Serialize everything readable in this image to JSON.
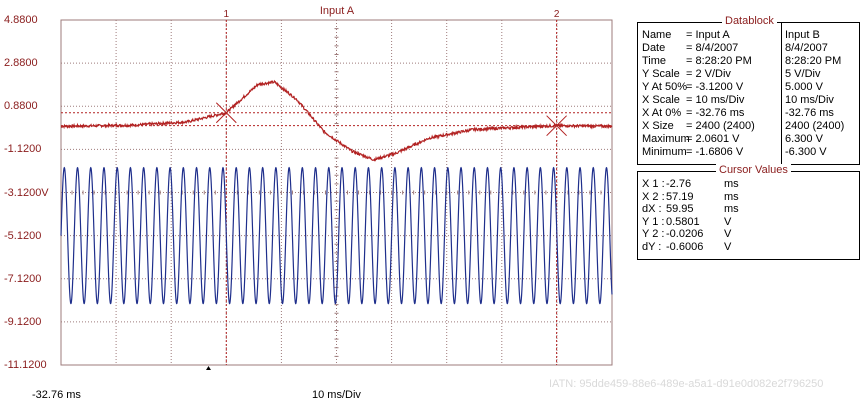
{
  "chart_data": {
    "type": "line",
    "title": "Input A",
    "x_start_label": "-32.76 ms",
    "x_scale_label": "10 ms/Div",
    "y_tick_labels": [
      "4.8800",
      "2.8800",
      "0.8800",
      "-1.1200",
      "-3.1200V",
      "-5.1200",
      "-7.1200",
      "-9.1200",
      "-11.1200"
    ],
    "ylim": [
      -11.12,
      4.88
    ],
    "xlim_ms": [
      -32.76,
      67.24
    ],
    "cursors": [
      {
        "label": "1",
        "x_ms": -2.76,
        "y_v": 0.5801
      },
      {
        "label": "2",
        "x_ms": 57.19,
        "y_v": -0.0206
      }
    ],
    "series": [
      {
        "name": "Input A",
        "color": "#b22222",
        "description_points": [
          [
            -32.76,
            -0.05
          ],
          [
            -20,
            0.0
          ],
          [
            -10,
            0.15
          ],
          [
            -2.76,
            0.58
          ],
          [
            3,
            1.9
          ],
          [
            6,
            2.0
          ],
          [
            10,
            1.2
          ],
          [
            15,
            -0.3
          ],
          [
            20,
            -1.2
          ],
          [
            24,
            -1.6
          ],
          [
            28,
            -1.3
          ],
          [
            34,
            -0.6
          ],
          [
            42,
            -0.2
          ],
          [
            50,
            -0.1
          ],
          [
            57.19,
            -0.02
          ],
          [
            67.24,
            -0.05
          ]
        ]
      },
      {
        "name": "Input B",
        "color": "#1f2f8c",
        "amplitude_div": 1.575,
        "center_v": -5.12,
        "period_ms": 2.4
      }
    ]
  },
  "datablock": {
    "title": "Datablock",
    "rows": [
      {
        "label": "Name",
        "a": "= Input A",
        "b": "Input B"
      },
      {
        "label": "Date",
        "a": "= 8/4/2007",
        "b": "8/4/2007"
      },
      {
        "label": "Time",
        "a": "= 8:28:20 PM",
        "b": "8:28:20 PM"
      },
      {
        "label": "Y Scale",
        "a": "=     2      V/Div",
        "b": "5      V/Div"
      },
      {
        "label": "Y At 50%",
        "a": "= -3.1200 V",
        "b": "5.000 V"
      },
      {
        "label": "X Scale",
        "a": "= 10      ms/Div",
        "b": "10      ms/Div"
      },
      {
        "label": "X At 0%",
        "a": "= -32.76    ms",
        "b": "-32.76    ms"
      },
      {
        "label": "X Size",
        "a": "= 2400 (2400)",
        "b": "2400 (2400)"
      },
      {
        "label": "Maximum",
        "a": "=  2.0601 V",
        "b": "6.300 V"
      },
      {
        "label": "Minimum",
        "a": "= -1.6806 V",
        "b": "-6.300 V"
      }
    ]
  },
  "cursor_values": {
    "title": "Cursor Values",
    "rows": [
      {
        "label": "X 1 :",
        "value": "-2.76",
        "unit": "ms"
      },
      {
        "label": "X 2 :",
        "value": "57.19",
        "unit": "ms"
      },
      {
        "label": "dX :",
        "value": "59.95",
        "unit": "ms"
      },
      {
        "label": "Y 1 :",
        "value": "0.5801",
        "unit": "V"
      },
      {
        "label": "Y 2 :",
        "value": "-0.0206",
        "unit": "V"
      },
      {
        "label": "dY :",
        "value": "-0.6006",
        "unit": "V"
      }
    ]
  },
  "watermark_text": "IATN: 95dde459-88e6-489e-a5a1-d91e0d082e2f796250",
  "colors": {
    "grid": "#9e7b7b",
    "axis_text": "#8a1c1c",
    "trace_a": "#b22222",
    "trace_b": "#1f2f8c"
  }
}
